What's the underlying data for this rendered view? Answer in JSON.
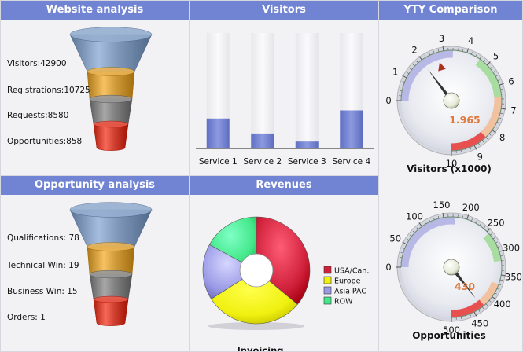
{
  "website_analysis": {
    "title": "Website analysis",
    "labels": [
      "Visitors:42900",
      "Registrations:10725",
      "Requests:8580",
      "Opportunities:858"
    ]
  },
  "opportunity_analysis": {
    "title": "Opportunity analysis",
    "labels": [
      "Qualifications: 78",
      "Technical Win: 19",
      "Business Win: 15",
      "Orders: 1"
    ]
  },
  "visitors_chart": {
    "title": "Visitors"
  },
  "revenues_chart": {
    "title": "Revenues"
  },
  "yty": {
    "title": "YTY Comparison"
  },
  "colors": {
    "header": "#7184d3",
    "bar": "#6f7fd0",
    "needle_value": "#e07a3c",
    "funnel": [
      "#7d96b8",
      "#cf9a3a",
      "#808080",
      "#d04030"
    ]
  },
  "chart_data": [
    {
      "id": "visitors",
      "type": "bar",
      "title": "Visitors",
      "categories": [
        "Service 1",
        "Service 2",
        "Service 3",
        "Service 4"
      ],
      "values": [
        26,
        13,
        6,
        33
      ],
      "ylim": [
        0,
        100
      ],
      "xlabel": "",
      "ylabel": ""
    },
    {
      "id": "revenues",
      "type": "pie",
      "title": "Revenues",
      "xlabel": "Invoicing",
      "legend_position": "right",
      "labels": [
        "USA/Can.",
        "Europe",
        "Asia PAC",
        "ROW"
      ],
      "values": [
        36,
        30,
        17,
        17
      ],
      "colors": [
        "#d0203a",
        "#f0f010",
        "#9a9ae6",
        "#44e88a"
      ]
    },
    {
      "id": "gauge-visitors",
      "type": "gauge",
      "title": "Visitors (x1000)",
      "min": 0,
      "max": 10,
      "ticks": [
        "0",
        "1",
        "2",
        "3",
        "4",
        "5",
        "6",
        "7",
        "8",
        "9",
        "10"
      ],
      "value": 1.965,
      "value_label": "1.965",
      "bands": [
        {
          "from": 0,
          "to": 3.4,
          "color": "#b8b8e6"
        },
        {
          "from": 4.6,
          "to": 6.5,
          "color": "#a8dca0"
        },
        {
          "from": 6.5,
          "to": 8.4,
          "color": "#f2c2a0"
        },
        {
          "from": 8.4,
          "to": 10,
          "color": "#e85050"
        }
      ],
      "marker_value": 2.7
    },
    {
      "id": "gauge-opportunities",
      "type": "gauge",
      "title": "Opportunities",
      "min": 0,
      "max": 500,
      "ticks": [
        "0",
        "50",
        "100",
        "150",
        "200",
        "250",
        "300",
        "350",
        "400",
        "450",
        "500"
      ],
      "value": 430,
      "value_label": "430",
      "bands": [
        {
          "from": 0,
          "to": 175,
          "color": "#b8b8e6"
        },
        {
          "from": 255,
          "to": 320,
          "color": "#a8dca0"
        },
        {
          "from": 370,
          "to": 425,
          "color": "#f2c2a0"
        },
        {
          "from": 425,
          "to": 500,
          "color": "#e85050"
        }
      ]
    }
  ]
}
